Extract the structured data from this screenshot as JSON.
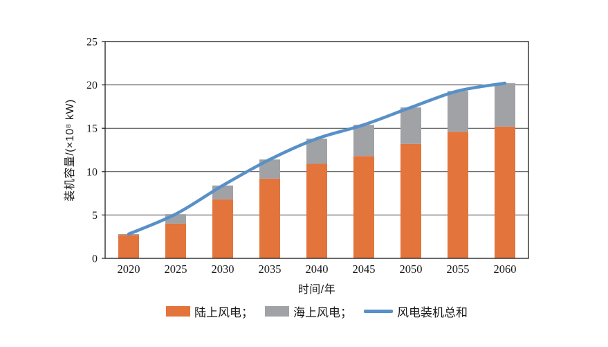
{
  "chart_data": {
    "type": "stacked-bar+line",
    "categories": [
      "2020",
      "2025",
      "2030",
      "2035",
      "2040",
      "2045",
      "2050",
      "2055",
      "2060"
    ],
    "series": [
      {
        "name": "陆上风电",
        "type": "bar",
        "stack": "wind",
        "color": "#E2743C",
        "values": [
          2.7,
          4.0,
          6.8,
          9.2,
          10.9,
          11.8,
          13.2,
          14.6,
          15.2
        ]
      },
      {
        "name": "海上风电",
        "type": "bar",
        "stack": "wind",
        "color": "#A0A2A6",
        "values": [
          0.1,
          1.1,
          1.6,
          2.2,
          2.9,
          3.6,
          4.2,
          4.7,
          5.0
        ]
      },
      {
        "name": "风电装机总和",
        "type": "line",
        "color": "#5890C7",
        "values": [
          2.8,
          5.1,
          8.4,
          11.4,
          13.8,
          15.4,
          17.4,
          19.3,
          20.2
        ]
      }
    ],
    "title": "",
    "xlabel": "时间/年",
    "ylabel": "装机容量/(×10⁸ kW)",
    "ylim": [
      0,
      25
    ],
    "ytick_step": 5,
    "yticks": [
      "0",
      "5",
      "10",
      "15",
      "20",
      "25"
    ],
    "grid": "horizontal",
    "grid_color": "#3d3d3d",
    "axis_color": "#1a1a1a",
    "legend_position": "bottom"
  },
  "legend": {
    "items": [
      {
        "label": "陆上风电；",
        "swatch": "bar-orange"
      },
      {
        "label": "海上风电；",
        "swatch": "bar-gray"
      },
      {
        "label": "风电装机总和",
        "swatch": "line-blue"
      }
    ]
  }
}
